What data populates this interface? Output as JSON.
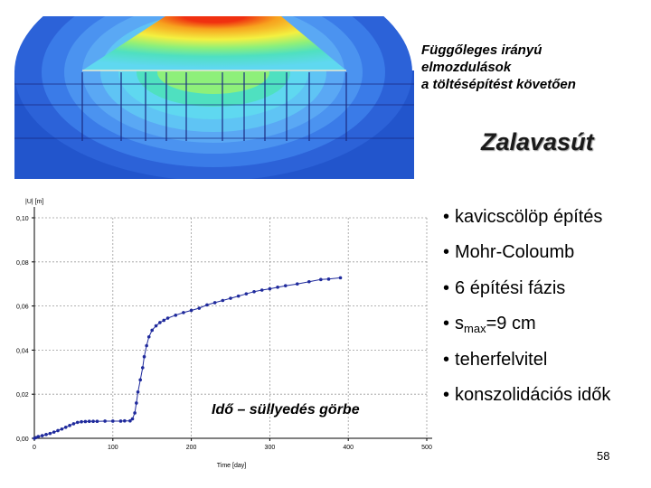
{
  "title_lines": [
    "Függőleges irányú",
    "elmozdulások",
    "a töltésépítést követően"
  ],
  "brand": "Zalavasút",
  "bullets": [
    {
      "text": "kavicscölöp építés"
    },
    {
      "text": "Mohr-Coloumb"
    },
    {
      "text": "6 építési fázis"
    },
    {
      "prefix": "s",
      "sub": "max",
      "suffix": "=9 cm"
    },
    {
      "text": "teherfelvitel"
    },
    {
      "text": "konszolidációs idők"
    }
  ],
  "bullet_char": "•",
  "curve_label": "Idő – süllyedés görbe",
  "page_number": "58",
  "contour_colors": {
    "deep": "#2255cc",
    "blue": "#3a7be8",
    "lightblue": "#5aa8f4",
    "cyan": "#5fd8f0",
    "teal": "#4fe0c0",
    "green": "#8ef07a",
    "yellow": "#f4f040",
    "orange": "#f7a21e",
    "red": "#f03010"
  },
  "chart_data": {
    "type": "line",
    "ylabel": "|U| [m]",
    "xlabel": "Time [day]",
    "xlim": [
      0,
      500
    ],
    "ylim": [
      0,
      0.1
    ],
    "x_ticks": [
      0,
      100,
      200,
      300,
      400,
      500
    ],
    "x_tick_labels": [
      "0",
      "100",
      "200",
      "300",
      "400",
      "500"
    ],
    "y_ticks": [
      0,
      0.02,
      0.04,
      0.06,
      0.08,
      0.1
    ],
    "y_tick_labels": [
      "0,00",
      "0,02",
      "0,04",
      "0,06",
      "0,08",
      "0,10"
    ],
    "grid": true,
    "line_color": "#1f2a9c",
    "series": [
      {
        "x": [
          0,
          2,
          5,
          10,
          15,
          20,
          25,
          30,
          35,
          40,
          45,
          50,
          55,
          60,
          65,
          70,
          75,
          80,
          90,
          100,
          110,
          115,
          122,
          125,
          128,
          130,
          132,
          135,
          138,
          140,
          143,
          146,
          150,
          155,
          160,
          165,
          170,
          180,
          190,
          200,
          210,
          220,
          230,
          240,
          250,
          260,
          270,
          280,
          290,
          300,
          310,
          320,
          335,
          350,
          365,
          375,
          390
        ],
        "y": [
          0.0,
          0.0003,
          0.0008,
          0.0012,
          0.0017,
          0.0022,
          0.0028,
          0.0035,
          0.0042,
          0.005,
          0.0058,
          0.0066,
          0.0072,
          0.0075,
          0.0076,
          0.0077,
          0.0077,
          0.0077,
          0.0078,
          0.0078,
          0.0078,
          0.0079,
          0.0079,
          0.0088,
          0.0115,
          0.016,
          0.021,
          0.0265,
          0.032,
          0.037,
          0.042,
          0.046,
          0.049,
          0.051,
          0.0525,
          0.0535,
          0.0545,
          0.0558,
          0.057,
          0.058,
          0.059,
          0.0605,
          0.0615,
          0.0625,
          0.0635,
          0.0645,
          0.0655,
          0.0665,
          0.0672,
          0.0678,
          0.0685,
          0.0692,
          0.07,
          0.071,
          0.072,
          0.0722,
          0.0728
        ]
      }
    ]
  }
}
